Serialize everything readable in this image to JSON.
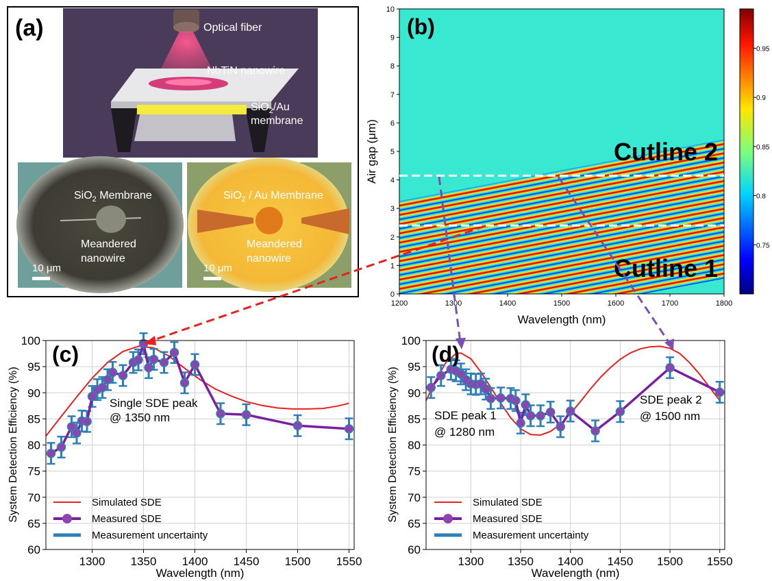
{
  "panel_a": {
    "label": "(a)",
    "render_labels": {
      "fiber": "Optical fiber",
      "nanowire": "NbTiN nanowire",
      "membrane_line1": "SiO",
      "membrane_sub": "2",
      "membrane_line1_rest": "/Au",
      "membrane_line2": "membrane"
    },
    "micrograph_left": {
      "title_a": "SiO",
      "title_sub": "2",
      "title_b": " Membrane",
      "label_line1": "Meandered",
      "label_line2": "nanowire",
      "scale": "10 μm"
    },
    "micrograph_right": {
      "title_a": "SiO",
      "title_sub": "2",
      "title_b": " / Au Membrane",
      "label_line1": "Meandered",
      "label_line2": "nanowire",
      "scale": "10 μm"
    }
  },
  "colors": {
    "simulated": "#e8211c",
    "measured": "#7b1fa2",
    "measured_marker": "#8e44ad",
    "uncertainty": "#2e7fb8",
    "arrow_red": "#e8211c",
    "arrow_purple": "#7a4fb0"
  },
  "chart_data": [
    {
      "panel": "(b)",
      "type": "heatmap",
      "xlabel": "Wavelength (nm)",
      "ylabel": "Air gap (μm)",
      "xlim": [
        1200,
        1800
      ],
      "ylim": [
        0,
        10
      ],
      "xticks": [
        1200,
        1300,
        1400,
        1500,
        1600,
        1700,
        1800
      ],
      "yticks": [
        0,
        1,
        2,
        3,
        4,
        5,
        6,
        7,
        8,
        9,
        10
      ],
      "colorbar": {
        "min": 0.7,
        "max": 0.99,
        "ticks": [
          0.75,
          0.8,
          0.85,
          0.9,
          0.95
        ]
      },
      "cutlines": [
        {
          "name": "Cutline 1",
          "air_gap": 2.4
        },
        {
          "name": "Cutline 2",
          "air_gap": 4.15
        }
      ]
    },
    {
      "panel": "(c)",
      "type": "line",
      "xlabel": "Wavelength (nm)",
      "ylabel": "System Detection Efficiency (%)",
      "xlim": [
        1255,
        1555
      ],
      "ylim": [
        60,
        100
      ],
      "xticks": [
        1300,
        1350,
        1400,
        1450,
        1500,
        1550
      ],
      "yticks": [
        60,
        65,
        70,
        75,
        80,
        85,
        90,
        95,
        100
      ],
      "annotation_line1": "Single SDE peak",
      "annotation_line2": "@ 1350 nm",
      "legend": [
        "Simulated SDE",
        "Measured SDE",
        "Measurement uncertainty"
      ],
      "simulated": {
        "x": [
          1255,
          1270,
          1285,
          1300,
          1315,
          1330,
          1345,
          1360,
          1375,
          1390,
          1405,
          1420,
          1435,
          1450,
          1465,
          1480,
          1495,
          1510,
          1525,
          1540,
          1550
        ],
        "y": [
          81.7,
          85.5,
          89.2,
          92.8,
          95.8,
          97.9,
          98.9,
          98.6,
          97.0,
          94.7,
          92.5,
          90.7,
          89.4,
          88.3,
          87.6,
          87.1,
          86.9,
          86.9,
          87.0,
          87.5,
          88.0
        ]
      },
      "measured": {
        "x": [
          1260,
          1270,
          1280,
          1285,
          1290,
          1295,
          1300,
          1305,
          1310,
          1315,
          1320,
          1330,
          1340,
          1345,
          1350,
          1355,
          1360,
          1370,
          1380,
          1390,
          1400,
          1425,
          1450,
          1500,
          1550
        ],
        "y": [
          78.4,
          79.6,
          83.5,
          82.3,
          84.6,
          84.5,
          89.3,
          90.6,
          91.0,
          92.5,
          93.9,
          93.3,
          95.8,
          96.3,
          99.4,
          94.8,
          96.4,
          95.8,
          97.7,
          91.9,
          95.4,
          86.0,
          85.8,
          83.7,
          83.1
        ],
        "err": 2.0
      }
    },
    {
      "panel": "(d)",
      "type": "line",
      "xlabel": "Wavelength (nm)",
      "ylabel": "System Detection Efficiency (%)",
      "xlim": [
        1255,
        1555
      ],
      "ylim": [
        60,
        100
      ],
      "xticks": [
        1300,
        1350,
        1400,
        1450,
        1500,
        1550
      ],
      "yticks": [
        60,
        65,
        70,
        75,
        80,
        85,
        90,
        95,
        100
      ],
      "annotations": [
        {
          "line1": "SDE peak 1",
          "line2": "@ 1280 nm"
        },
        {
          "line1": "SDE peak 2",
          "line2": "@ 1500 nm"
        }
      ],
      "legend": [
        "Simulated SDE",
        "Measured SDE",
        "Measurement uncertainty"
      ],
      "simulated": {
        "x": [
          1255,
          1265,
          1275,
          1285,
          1290,
          1300,
          1310,
          1320,
          1330,
          1340,
          1350,
          1360,
          1370,
          1380,
          1390,
          1400,
          1410,
          1420,
          1430,
          1440,
          1450,
          1460,
          1470,
          1480,
          1490,
          1500,
          1510,
          1520,
          1530,
          1540,
          1550
        ],
        "y": [
          88.5,
          92.5,
          95.8,
          97.5,
          97.6,
          96.5,
          94.0,
          91.0,
          88.0,
          85.2,
          83.1,
          82.0,
          81.9,
          82.6,
          84.0,
          86.0,
          88.3,
          90.7,
          92.9,
          94.8,
          96.4,
          97.6,
          98.4,
          98.8,
          98.9,
          98.5,
          97.5,
          95.7,
          93.5,
          91.0,
          88.5
        ]
      },
      "measured": {
        "x": [
          1260,
          1270,
          1280,
          1285,
          1290,
          1295,
          1300,
          1305,
          1310,
          1315,
          1320,
          1330,
          1340,
          1345,
          1350,
          1355,
          1360,
          1370,
          1380,
          1390,
          1400,
          1425,
          1450,
          1500,
          1550
        ],
        "y": [
          91.0,
          93.3,
          94.5,
          94.2,
          93.6,
          92.5,
          91.7,
          91.6,
          91.7,
          90.7,
          88.9,
          89.0,
          88.9,
          88.5,
          84.2,
          87.7,
          85.6,
          85.6,
          86.3,
          83.5,
          86.5,
          82.7,
          86.4,
          94.8,
          90.1
        ],
        "err": 2.0
      }
    }
  ]
}
